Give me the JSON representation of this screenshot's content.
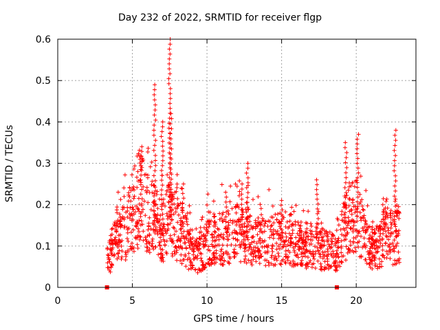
{
  "chart_data": {
    "type": "scatter",
    "title": "Day 232 of 2022, SRMTID for receiver flgp",
    "xlabel": "GPS time / hours",
    "ylabel": "SRMTID / TECUs",
    "xlim": [
      0,
      24
    ],
    "ylim": [
      0,
      0.6
    ],
    "xticks": [
      0,
      5,
      10,
      15,
      20
    ],
    "yticks": [
      0,
      0.1,
      0.2,
      0.3,
      0.4,
      0.5,
      0.6
    ],
    "xtick_labels": [
      "0",
      "5",
      "10",
      "15",
      "20"
    ],
    "ytick_labels": [
      "0",
      "0.1",
      "0.2",
      "0.3",
      "0.4",
      "0.5",
      "0.6"
    ],
    "grid": true,
    "marker": "+",
    "color": "#ff0000",
    "gap_markers": [
      3.3,
      18.7
    ],
    "envelope": [
      {
        "x": 3.3,
        "y": 0.06
      },
      {
        "x": 3.6,
        "y": 0.09
      },
      {
        "x": 4.0,
        "y": 0.11
      },
      {
        "x": 4.5,
        "y": 0.14
      },
      {
        "x": 5.0,
        "y": 0.18
      },
      {
        "x": 5.5,
        "y": 0.22
      },
      {
        "x": 6.0,
        "y": 0.19
      },
      {
        "x": 6.5,
        "y": 0.16
      },
      {
        "x": 7.0,
        "y": 0.13
      },
      {
        "x": 7.5,
        "y": 0.17
      },
      {
        "x": 8.0,
        "y": 0.14
      },
      {
        "x": 8.5,
        "y": 0.12
      },
      {
        "x": 9.0,
        "y": 0.07
      },
      {
        "x": 9.5,
        "y": 0.08
      },
      {
        "x": 10.0,
        "y": 0.11
      },
      {
        "x": 11.0,
        "y": 0.12
      },
      {
        "x": 12.0,
        "y": 0.13
      },
      {
        "x": 13.0,
        "y": 0.12
      },
      {
        "x": 14.0,
        "y": 0.11
      },
      {
        "x": 15.0,
        "y": 0.12
      },
      {
        "x": 16.0,
        "y": 0.11
      },
      {
        "x": 17.0,
        "y": 0.1
      },
      {
        "x": 18.0,
        "y": 0.09
      },
      {
        "x": 18.7,
        "y": 0.08
      },
      {
        "x": 19.0,
        "y": 0.12
      },
      {
        "x": 19.5,
        "y": 0.16
      },
      {
        "x": 20.0,
        "y": 0.17
      },
      {
        "x": 20.5,
        "y": 0.12
      },
      {
        "x": 21.0,
        "y": 0.09
      },
      {
        "x": 21.5,
        "y": 0.1
      },
      {
        "x": 22.0,
        "y": 0.13
      },
      {
        "x": 22.5,
        "y": 0.12
      },
      {
        "x": 22.9,
        "y": 0.13
      }
    ],
    "peaks": [
      {
        "x": 5.6,
        "y": 0.34
      },
      {
        "x": 6.5,
        "y": 0.49
      },
      {
        "x": 7.0,
        "y": 0.4
      },
      {
        "x": 7.5,
        "y": 0.6
      },
      {
        "x": 7.6,
        "y": 0.42
      },
      {
        "x": 8.4,
        "y": 0.25
      },
      {
        "x": 11.3,
        "y": 0.23
      },
      {
        "x": 12.3,
        "y": 0.25
      },
      {
        "x": 12.7,
        "y": 0.3
      },
      {
        "x": 15.0,
        "y": 0.21
      },
      {
        "x": 17.4,
        "y": 0.26
      },
      {
        "x": 19.3,
        "y": 0.35
      },
      {
        "x": 20.1,
        "y": 0.37
      },
      {
        "x": 21.8,
        "y": 0.2
      },
      {
        "x": 22.6,
        "y": 0.38
      }
    ]
  }
}
